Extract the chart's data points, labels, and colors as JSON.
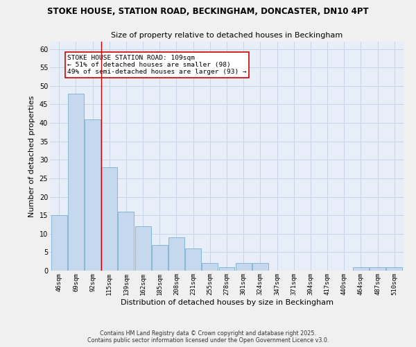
{
  "title1": "STOKE HOUSE, STATION ROAD, BECKINGHAM, DONCASTER, DN10 4PT",
  "title2": "Size of property relative to detached houses in Beckingham",
  "xlabel": "Distribution of detached houses by size in Beckingham",
  "ylabel": "Number of detached properties",
  "categories": [
    "46sqm",
    "69sqm",
    "92sqm",
    "115sqm",
    "139sqm",
    "162sqm",
    "185sqm",
    "208sqm",
    "231sqm",
    "255sqm",
    "278sqm",
    "301sqm",
    "324sqm",
    "347sqm",
    "371sqm",
    "394sqm",
    "417sqm",
    "440sqm",
    "464sqm",
    "487sqm",
    "510sqm"
  ],
  "values": [
    15,
    48,
    41,
    28,
    16,
    12,
    7,
    9,
    6,
    2,
    1,
    2,
    2,
    0,
    0,
    0,
    0,
    0,
    1,
    1,
    1
  ],
  "bar_color": "#c5d8ed",
  "bar_edge_color": "#7aafd4",
  "grid_color": "#c8d4e8",
  "background_color": "#e8eef8",
  "fig_background": "#f0f0f0",
  "red_line_x": 2.5,
  "annotation_text": "STOKE HOUSE STATION ROAD: 109sqm\n← 51% of detached houses are smaller (98)\n49% of semi-detached houses are larger (93) →",
  "annotation_box_color": "#ffffff",
  "annotation_box_edge_color": "#cc0000",
  "ylim": [
    0,
    62
  ],
  "yticks": [
    0,
    5,
    10,
    15,
    20,
    25,
    30,
    35,
    40,
    45,
    50,
    55,
    60
  ],
  "footer1": "Contains HM Land Registry data © Crown copyright and database right 2025.",
  "footer2": "Contains public sector information licensed under the Open Government Licence v3.0."
}
